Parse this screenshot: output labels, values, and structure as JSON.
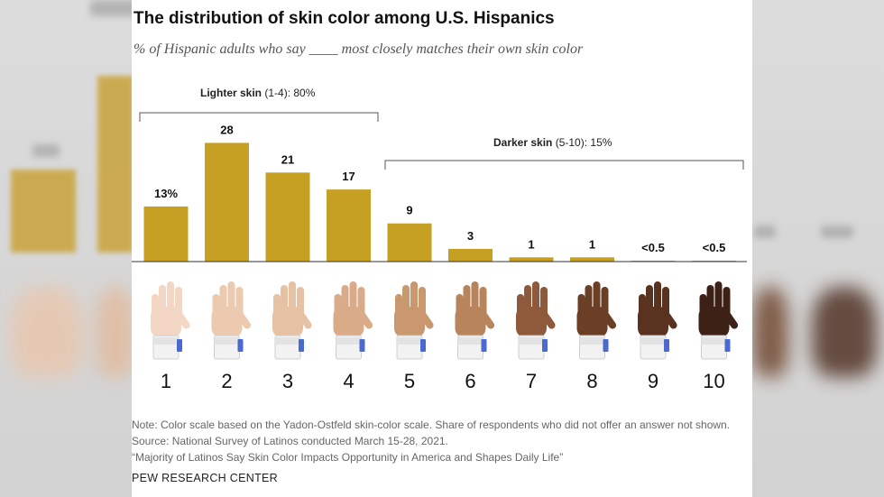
{
  "chart_data": {
    "type": "bar",
    "title": "The distribution of skin color among U.S. Hispanics",
    "subtitle": "% of Hispanic adults who say ____ most closely matches their own skin color",
    "categories": [
      "1",
      "2",
      "3",
      "4",
      "5",
      "6",
      "7",
      "8",
      "9",
      "10"
    ],
    "values": [
      13,
      28,
      21,
      17,
      9,
      3,
      1,
      1,
      0.2,
      0.2
    ],
    "value_labels": [
      "13%",
      "28",
      "21",
      "17",
      "9",
      "3",
      "1",
      "1",
      "<0.5",
      "<0.5"
    ],
    "ylim": [
      0,
      30
    ],
    "grid": false,
    "bar_color": "#c5a022",
    "groups": [
      {
        "label": "Lighter skin",
        "range": "(1-4): 80%",
        "from": 1,
        "to": 4
      },
      {
        "label": "Darker skin",
        "range": "(5-10): 15%",
        "from": 5,
        "to": 10
      }
    ]
  },
  "skin_tones": [
    "#f3d6c3",
    "#eccab0",
    "#e6c1a4",
    "#d9ab88",
    "#c9986f",
    "#b8845c",
    "#8e5a3b",
    "#6b3f26",
    "#5a3320",
    "#3e2116"
  ],
  "notes": {
    "note": "Note: Color scale based on the Yadon-Ostfeld skin-color scale. Share of respondents who did not offer an answer not shown.",
    "source": "Source: National Survey of Latinos conducted March 15-28, 2021.",
    "report": "“Majority of Latinos Say Skin Color Impacts Opportunity in America and Shapes Daily Life”"
  },
  "brand": "PEW RESEARCH CENTER"
}
